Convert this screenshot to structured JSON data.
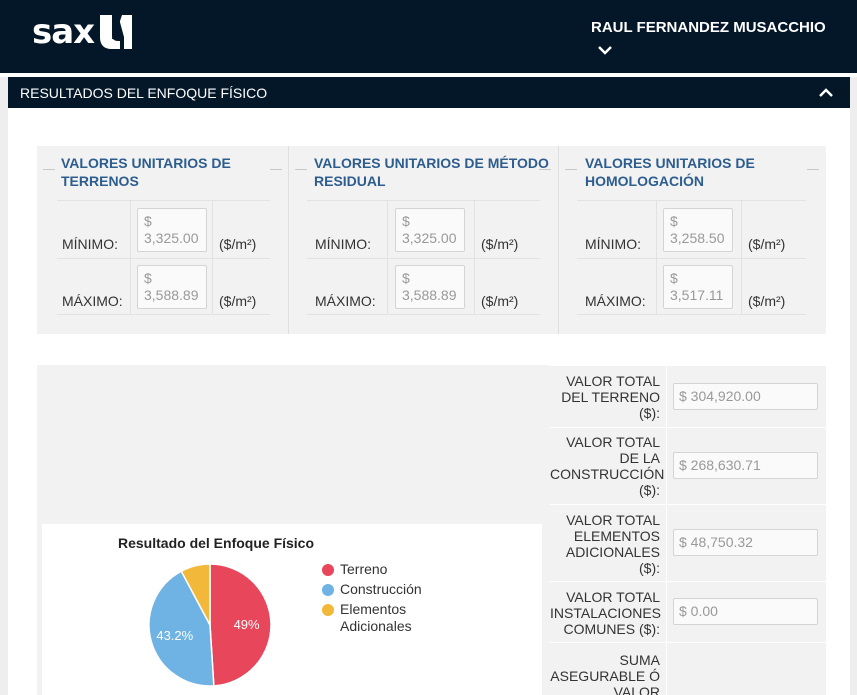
{
  "header": {
    "logo_text": "sax",
    "user_name": "RAUL FERNANDEZ MUSACCHIO",
    "bg_color": "#031729"
  },
  "section": {
    "title": "RESULTADOS DEL ENFOQUE FÍSICO"
  },
  "unit_values": {
    "columns": [
      {
        "title_line1": "VALORES UNITARIOS DE",
        "title_line2": "TERRENOS",
        "min_label": "MÍNIMO:",
        "min_value_currency": "$",
        "min_value": "3,325.00",
        "max_label": "MÁXIMO:",
        "max_value_currency": "$",
        "max_value": "3,588.89",
        "unit": "($/m²)"
      },
      {
        "title_line1": "VALORES UNITARIOS DE MÉTODO",
        "title_line2": "RESIDUAL",
        "min_label": "MÍNIMO:",
        "min_value_currency": "$",
        "min_value": "3,325.00",
        "max_label": "MÁXIMO:",
        "max_value_currency": "$",
        "max_value": "3,588.89",
        "unit": "($/m²)"
      },
      {
        "title_line1": "VALORES UNITARIOS DE",
        "title_line2": "HOMOLOGACIÓN",
        "min_label": "MÍNIMO:",
        "min_value_currency": "$",
        "min_value": "3,258.50",
        "max_label": "MÁXIMO:",
        "max_value_currency": "$",
        "max_value": "3,517.11",
        "unit": "($/m²)"
      }
    ]
  },
  "totals": [
    {
      "label_lines": [
        "VALOR TOTAL",
        "DEL TERRENO",
        "($):"
      ],
      "value": "$ 304,920.00"
    },
    {
      "label_lines": [
        "VALOR TOTAL",
        "DE LA",
        "CONSTRUCCIÓN",
        "($):"
      ],
      "value": "$ 268,630.71"
    },
    {
      "label_lines": [
        "VALOR TOTAL",
        "ELEMENTOS",
        "ADICIONALES",
        "($):"
      ],
      "value": "$ 48,750.32"
    },
    {
      "label_lines": [
        "VALOR TOTAL",
        "INSTALACIONES",
        "COMUNES ($):"
      ],
      "value": "$ 0.00"
    },
    {
      "label_lines": [
        "SUMA",
        "ASEGURABLE Ó",
        "VALOR"
      ],
      "value": ""
    }
  ],
  "chart_data": {
    "type": "pie",
    "title": "Resultado del Enfoque Físico",
    "series": [
      {
        "name": "Terreno",
        "value": 49.0,
        "label": "49%",
        "color": "#e8475b"
      },
      {
        "name": "Construcción",
        "value": 43.2,
        "label": "43.2%",
        "color": "#6fb2e4"
      },
      {
        "name": "Elementos Adicionales",
        "value": 7.8,
        "label": "",
        "color": "#f2b83a"
      }
    ],
    "legend_lines": [
      [
        "Terreno"
      ],
      [
        "Construcción"
      ],
      [
        "Elementos",
        "Adicionales"
      ]
    ],
    "legend_position": "right"
  }
}
